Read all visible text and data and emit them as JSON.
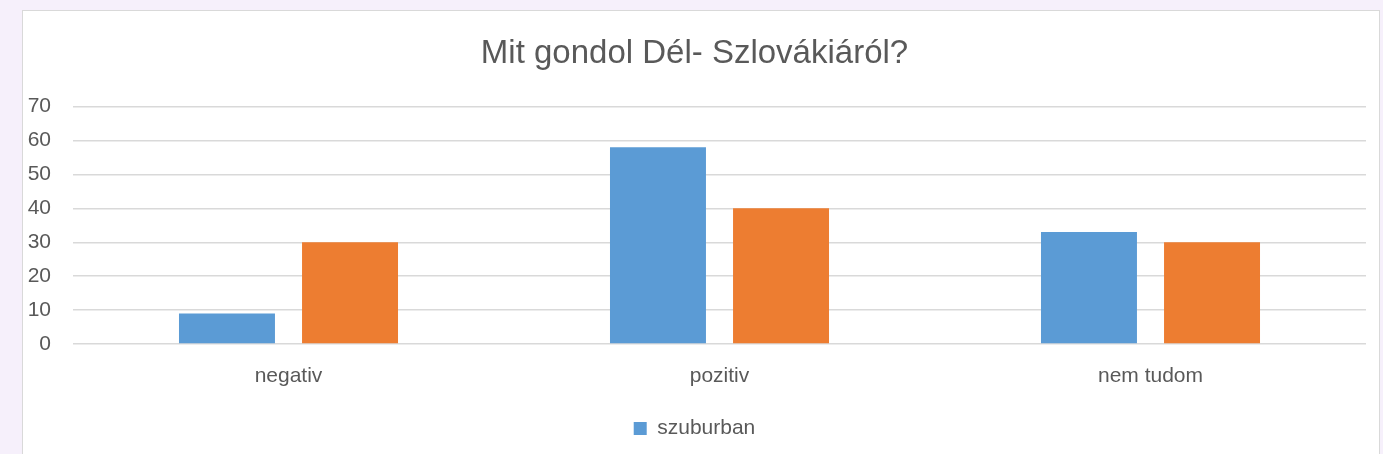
{
  "chart_data": {
    "type": "bar",
    "title": "Mit gondol Dél- Szlovákiáról?",
    "categories": [
      "negativ",
      "pozitiv",
      "nem tudom"
    ],
    "series": [
      {
        "name": "szuburban",
        "color": "#5b9bd5",
        "values": [
          9,
          58,
          33
        ]
      },
      {
        "color": "#ed7d31",
        "values": [
          30,
          40,
          30
        ]
      }
    ],
    "ylim": [
      0,
      70
    ],
    "yticks": [
      0,
      10,
      20,
      30,
      40,
      50,
      60,
      70
    ],
    "grid": "y",
    "legend": "bottom"
  }
}
